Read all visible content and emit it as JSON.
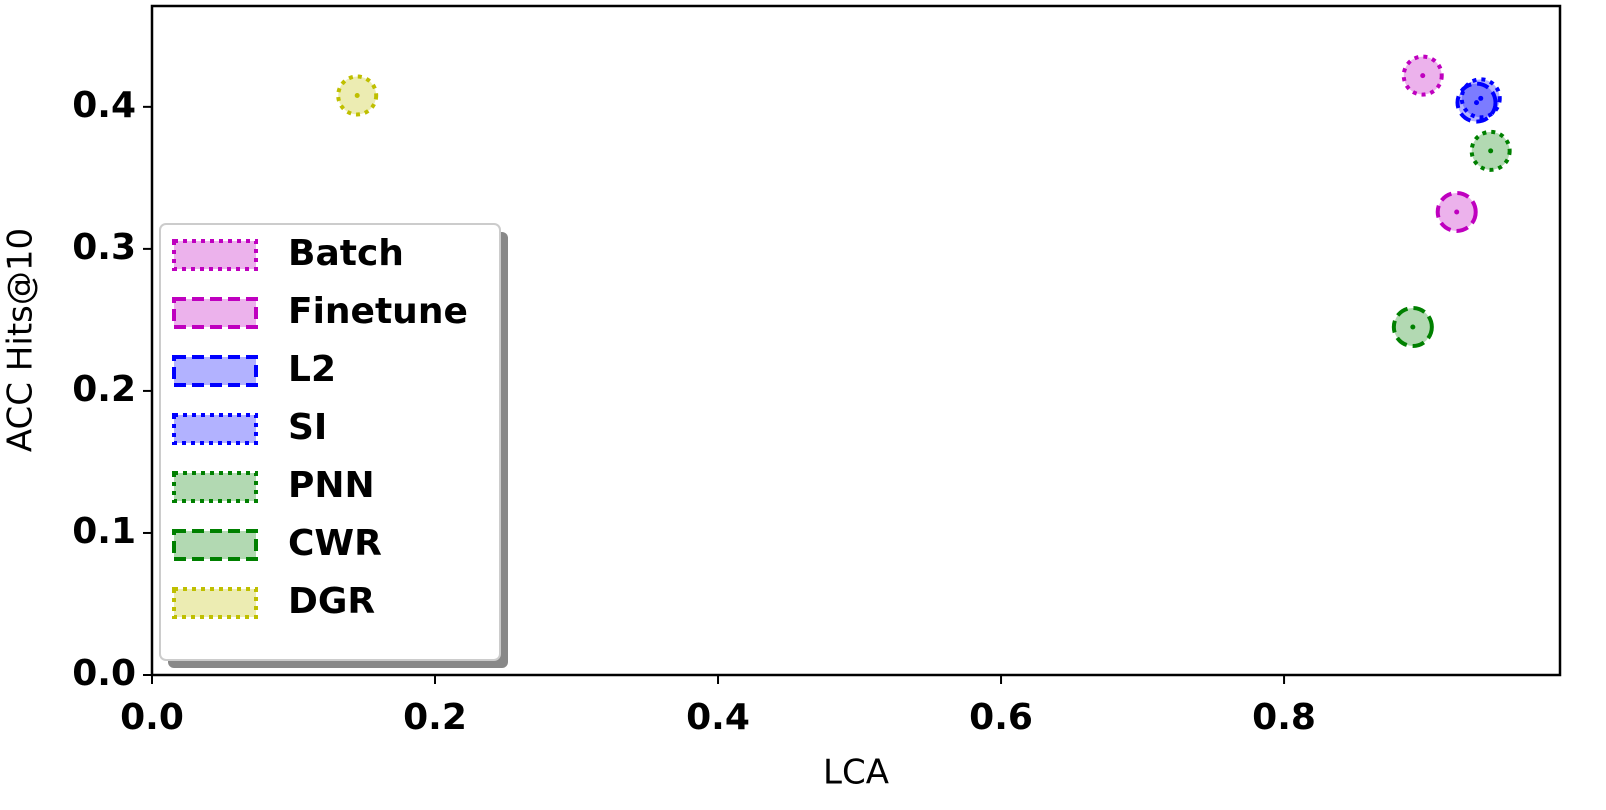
{
  "chart_data": {
    "type": "scatter",
    "x_label": "LCA",
    "y_label": "ACC Hits@10",
    "xlim": [
      0,
      0.995
    ],
    "ylim": [
      0,
      0.471
    ],
    "xticks": [
      {
        "value": 0,
        "label": "0.0"
      },
      0.2,
      0.4,
      0.6,
      0.8
    ],
    "yticks": [
      {
        "value": 0,
        "label": "0.0"
      },
      0.1,
      0.2,
      0.3,
      0.4
    ],
    "legend": "lower left",
    "series": [
      {
        "name": "Batch",
        "color": "#bf00bf",
        "dash": "dotted",
        "x": [
          0.898
        ],
        "values": [
          0.422
        ]
      },
      {
        "name": "Finetune",
        "color": "#bf00bf",
        "dash": "dashed",
        "x": [
          0.922
        ],
        "values": [
          0.326
        ]
      },
      {
        "name": "L2",
        "color": "#0000ff",
        "dash": "dashed",
        "x": [
          0.936
        ],
        "values": [
          0.403
        ]
      },
      {
        "name": "SI",
        "color": "#0000ff",
        "dash": "dotted",
        "x": [
          0.939
        ],
        "values": [
          0.406
        ]
      },
      {
        "name": "PNN",
        "color": "#008000",
        "dash": "dotted",
        "x": [
          0.946
        ],
        "values": [
          0.369
        ]
      },
      {
        "name": "CWR",
        "color": "#008000",
        "dash": "dashed",
        "x": [
          0.891
        ],
        "values": [
          0.245
        ]
      },
      {
        "name": "DGR",
        "color": "#bfbf00",
        "dash": "dotted",
        "x": [
          0.145
        ],
        "values": [
          0.408
        ]
      }
    ]
  }
}
